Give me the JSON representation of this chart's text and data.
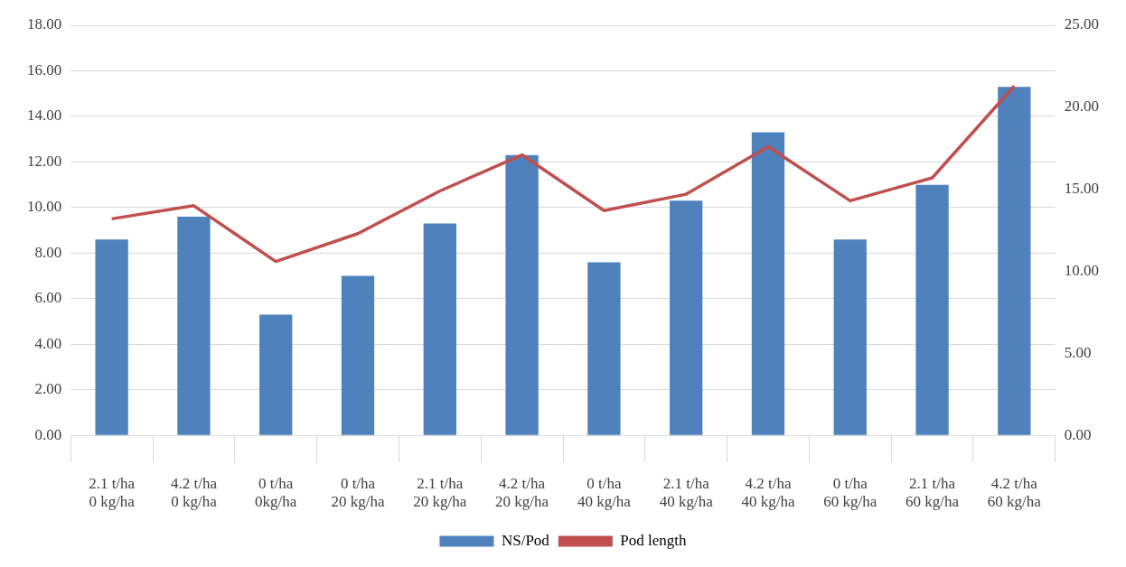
{
  "chart_data": {
    "type": "bar",
    "categories": [
      "2.1 t/ha\n0 kg/ha",
      "4.2 t/ha\n0 kg/ha",
      "0 t/ha\n0kg/ha",
      "0 t/ha\n20 kg/ha",
      "2.1 t/ha\n20 kg/ha",
      "4.2 t/ha\n20 kg/ha",
      "0 t/ha\n40 kg/ha",
      "2.1 t/ha\n40 kg/ha",
      "4.2 t/ha\n40 kg/ha",
      "0 t/ha\n60 kg/ha",
      "2.1 t/ha\n60 kg/ha",
      "4.2 t/ha\n60 kg/ha"
    ],
    "series": [
      {
        "name": "NS/Pod",
        "color": "#4f81bd",
        "values": [
          8.6,
          9.6,
          5.3,
          7.0,
          9.3,
          12.3,
          7.6,
          10.3,
          13.3,
          8.6,
          11.0,
          15.3
        ]
      },
      {
        "name": "Pod length",
        "type": "line",
        "axis": "y2",
        "color": "#c0504d",
        "values": [
          13.2,
          14.0,
          10.6,
          12.3,
          14.9,
          17.1,
          13.7,
          14.7,
          17.6,
          14.3,
          15.7,
          21.3
        ]
      }
    ],
    "ylim": [
      0,
      18
    ],
    "yticks": [
      {
        "value": 0,
        "label": "0.00"
      },
      {
        "value": 2,
        "label": "2.00"
      },
      {
        "value": 4,
        "label": "4.00"
      },
      {
        "value": 6,
        "label": "6.00"
      },
      {
        "value": 8,
        "label": "8.00"
      },
      {
        "value": 10,
        "label": "10.00"
      },
      {
        "value": 12,
        "label": "12.00"
      },
      {
        "value": 14,
        "label": "14.00"
      },
      {
        "value": 16,
        "label": "16.00"
      },
      {
        "value": 18,
        "label": "18.00"
      }
    ],
    "y2lim": [
      0,
      25
    ],
    "y2ticks": [
      {
        "value": 0,
        "label": "0.00"
      },
      {
        "value": 5,
        "label": "5.00"
      },
      {
        "value": 10,
        "label": "10.00"
      },
      {
        "value": 15,
        "label": "15.00"
      },
      {
        "value": 20,
        "label": "20.00"
      },
      {
        "value": 25,
        "label": "25.00"
      }
    ],
    "grid": "y",
    "legend": "bottom",
    "marker": "none",
    "line_style": "solid"
  }
}
